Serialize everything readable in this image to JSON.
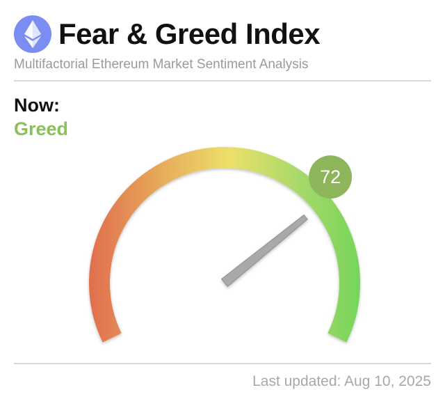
{
  "header": {
    "title": "Fear & Greed Index",
    "subtitle": "Multifactorial Ethereum Market Sentiment Analysis",
    "logo_icon": "ethereum-icon"
  },
  "sentiment": {
    "now_label": "Now:",
    "classification": "Greed",
    "classification_color": "#8cbf5c",
    "value": "72",
    "value_fraction": 0.72,
    "badge_color": "#8db65a"
  },
  "gauge": {
    "min": 0,
    "max": 100,
    "gradient_colors": [
      "#e06e4e",
      "#e8b25c",
      "#ece06a",
      "#a6d96a",
      "#76d55b"
    ]
  },
  "footer": {
    "last_updated": "Last updated: Aug 10, 2025"
  }
}
